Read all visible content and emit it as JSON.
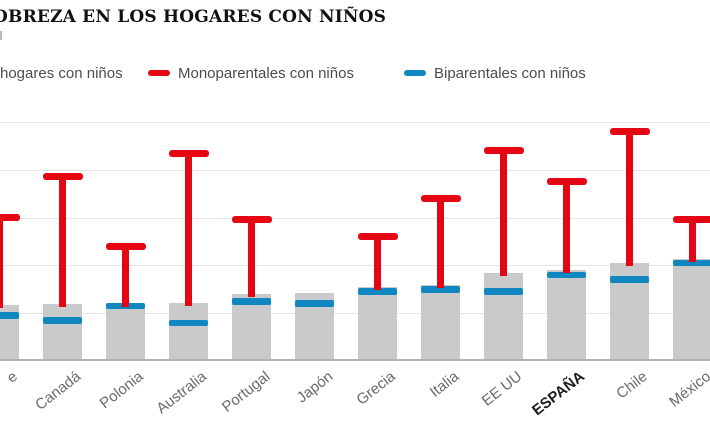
{
  "title": "OBREZA EN LOS HOGARES CON NIÑOS",
  "legend": {
    "items": [
      {
        "label": "hogares con niños",
        "swatch_color": null
      },
      {
        "label": "Monoparentales con niños",
        "swatch_color": "#e50613"
      },
      {
        "label": "Biparentales con niños",
        "swatch_color": "#1187c2"
      }
    ]
  },
  "colors": {
    "bar_gray": "#c9cacb",
    "monoparental_red": "#e50613",
    "biparental_blue": "#1187c2",
    "gridline": "#e4e4e4",
    "axis": "#b2b2b2"
  },
  "chart_data": {
    "type": "bar",
    "title": "OBREZA EN LOS HOGARES CON NIÑOS",
    "unit": "%",
    "categories": [
      "e",
      "Canadá",
      "Polonia",
      "Australia",
      "Portugal",
      "Japón",
      "Grecia",
      "Italia",
      "EE UU",
      "ESPAÑA",
      "Chile",
      "México"
    ],
    "highlight_category": "ESPAÑA",
    "series": [
      {
        "name": "hogares con niños",
        "style": "bar",
        "color": "#c9cacb",
        "values": [
          11.7,
          12,
          12,
          12.2,
          14,
          14.2,
          15.5,
          16,
          18.5,
          19,
          20.5,
          21.3
        ]
      },
      {
        "name": "Monoparentales con niños",
        "style": "T-marker",
        "color": "#e50613",
        "values": [
          30,
          38.5,
          24,
          43.5,
          29.5,
          null,
          26,
          34,
          44,
          37.5,
          48,
          29.5
        ]
      },
      {
        "name": "Biparentales con niños",
        "style": "tick-marker",
        "color": "#1187c2",
        "values": [
          9.5,
          8.5,
          11.5,
          8,
          12.5,
          12,
          14.5,
          15,
          14.5,
          18,
          17,
          20.5
        ]
      }
    ],
    "ylim": [
      0,
      55
    ],
    "gridline_values": [
      10,
      20,
      30,
      40,
      50
    ],
    "grid": true,
    "y_axis_labels_visible": false,
    "legend_position": "top",
    "note": "first category label and first bar are cut off at the left edge of the image"
  }
}
